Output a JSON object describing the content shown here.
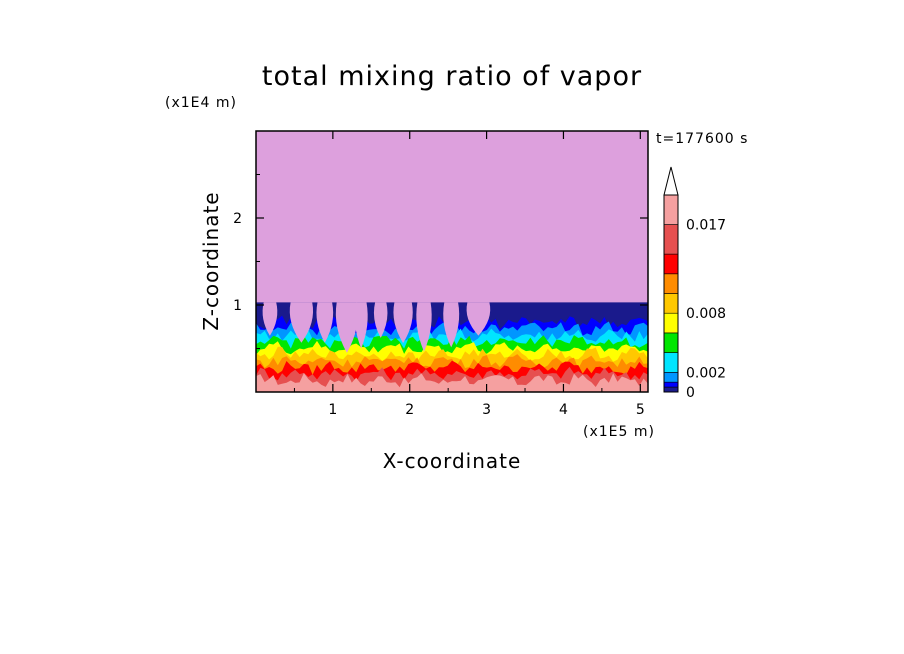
{
  "chart_data": {
    "type": "heatmap",
    "title": "total mixing ratio of vapor",
    "xlabel": "X-coordinate",
    "ylabel": "Z-coordinate",
    "x_unit": "(x1E5 m)",
    "y_unit": "(x1E4 m)",
    "time_label": "t=177600 s",
    "xlim": [
      0,
      5.1
    ],
    "ylim": [
      0,
      3.0
    ],
    "x_ticks": [
      "1",
      "2",
      "3",
      "4",
      "5"
    ],
    "y_ticks": [
      "1",
      "2"
    ],
    "x_tick_values": [
      1,
      2,
      3,
      4,
      5
    ],
    "y_tick_values": [
      1,
      2
    ],
    "colorbar": {
      "labels": [
        "0",
        "0.002",
        "0.008",
        "0.017"
      ],
      "label_values": [
        0,
        0.002,
        0.008,
        0.017
      ],
      "levels": [
        0,
        0.0005,
        0.001,
        0.002,
        0.004,
        0.006,
        0.008,
        0.01,
        0.012,
        0.014,
        0.017,
        0.02
      ],
      "colors": [
        "#1a1a8c",
        "#0000ff",
        "#0096ff",
        "#00e5ff",
        "#00e600",
        "#ffff00",
        "#ffc800",
        "#ff8c00",
        "#ff0000",
        "#e65050",
        "#f5a0a0"
      ],
      "extend_color": "#ffffff"
    },
    "layers": [
      {
        "name": "upper layer",
        "z_range": [
          1.03,
          3.0
        ],
        "color": "#dda0dd"
      },
      {
        "name": "boundary layer",
        "z_range": [
          0,
          1.03
        ],
        "colors_bottom_to_top": [
          "#f5a0a0",
          "#e65050",
          "#ff0000",
          "#ff8c00",
          "#ffc800",
          "#ffff00",
          "#00e600",
          "#00e5ff",
          "#0096ff",
          "#0000ff",
          "#1a1a8c"
        ]
      }
    ]
  }
}
